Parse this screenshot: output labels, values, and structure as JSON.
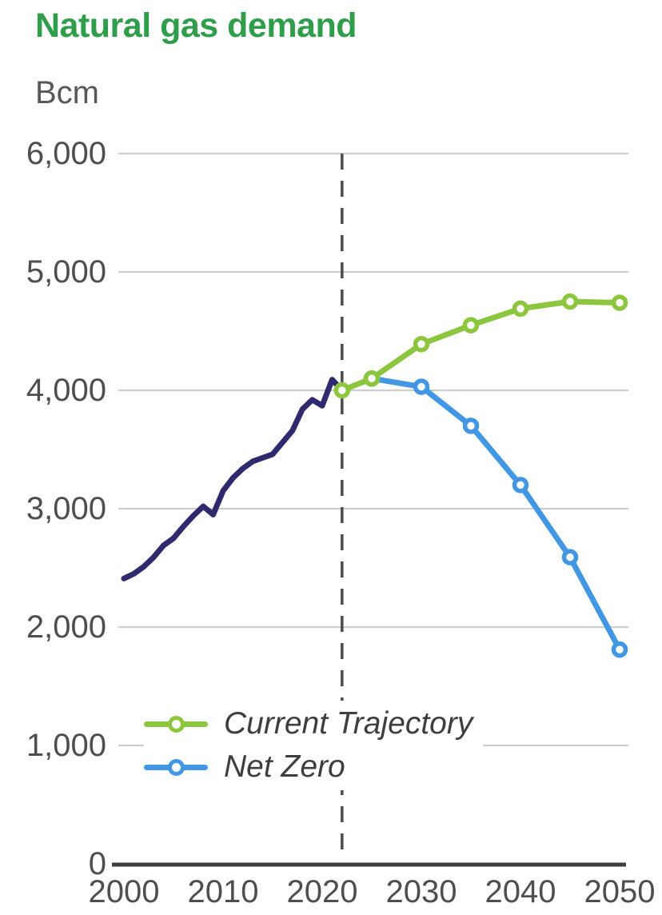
{
  "header": {
    "title": "Natural gas demand",
    "unit_label": "Bcm"
  },
  "colors": {
    "title_green": "#2f9e4b",
    "historical_line": "#2f2a6e",
    "current_trajectory": "#8cc63f",
    "net_zero": "#4197e3",
    "gridline": "#cbcbcb",
    "axis_line": "#3f3f3f",
    "dashed_line": "#4c4c4c",
    "tick_text": "#4e4e50",
    "legend_text": "#3e3e3e",
    "unit_text": "#58585b"
  },
  "legend": {
    "items": [
      {
        "label": "Current Trajectory",
        "series": "current_trajectory"
      },
      {
        "label": "Net Zero",
        "series": "net_zero"
      }
    ]
  },
  "chart_data": {
    "type": "line",
    "title": "Natural gas demand",
    "ylabel": "Bcm",
    "xlim": [
      2000,
      2050
    ],
    "ylim": [
      0,
      6000
    ],
    "grid": true,
    "legend_position": "inside-bottom-left",
    "x_ticks": [
      {
        "value": 2000,
        "label": "2000"
      },
      {
        "value": 2010,
        "label": "2010"
      },
      {
        "value": 2020,
        "label": "2020"
      },
      {
        "value": 2030,
        "label": "2030"
      },
      {
        "value": 2040,
        "label": "2040"
      },
      {
        "value": 2050,
        "label": "2050"
      }
    ],
    "y_ticks": [
      {
        "value": 0,
        "label": "0"
      },
      {
        "value": 1000,
        "label": "1,000"
      },
      {
        "value": 2000,
        "label": "2,000"
      },
      {
        "value": 3000,
        "label": "3,000"
      },
      {
        "value": 4000,
        "label": "4,000"
      },
      {
        "value": 5000,
        "label": "5,000"
      },
      {
        "value": 6000,
        "label": "6,000"
      }
    ],
    "vline": {
      "x": 2022,
      "style": "dashed"
    },
    "series": [
      {
        "name": "Historical",
        "color_key": "historical_line",
        "markers": false,
        "points": [
          [
            2000,
            2410
          ],
          [
            2001,
            2450
          ],
          [
            2002,
            2510
          ],
          [
            2003,
            2590
          ],
          [
            2004,
            2690
          ],
          [
            2005,
            2750
          ],
          [
            2006,
            2850
          ],
          [
            2007,
            2940
          ],
          [
            2008,
            3020
          ],
          [
            2009,
            2950
          ],
          [
            2010,
            3150
          ],
          [
            2011,
            3260
          ],
          [
            2012,
            3340
          ],
          [
            2013,
            3400
          ],
          [
            2014,
            3430
          ],
          [
            2015,
            3460
          ],
          [
            2016,
            3560
          ],
          [
            2017,
            3660
          ],
          [
            2018,
            3840
          ],
          [
            2019,
            3920
          ],
          [
            2020,
            3870
          ],
          [
            2021,
            4090
          ],
          [
            2022,
            4000
          ]
        ]
      },
      {
        "name": "Net Zero",
        "color_key": "net_zero",
        "markers": true,
        "points": [
          [
            2025,
            4100
          ],
          [
            2030,
            4030
          ],
          [
            2035,
            3700
          ],
          [
            2040,
            3200
          ],
          [
            2045,
            2590
          ],
          [
            2050,
            1810
          ]
        ]
      },
      {
        "name": "Current Trajectory",
        "color_key": "current_trajectory",
        "markers": true,
        "points": [
          [
            2022,
            4000
          ],
          [
            2025,
            4100
          ],
          [
            2030,
            4390
          ],
          [
            2035,
            4550
          ],
          [
            2040,
            4690
          ],
          [
            2045,
            4750
          ],
          [
            2050,
            4740
          ]
        ]
      }
    ]
  }
}
